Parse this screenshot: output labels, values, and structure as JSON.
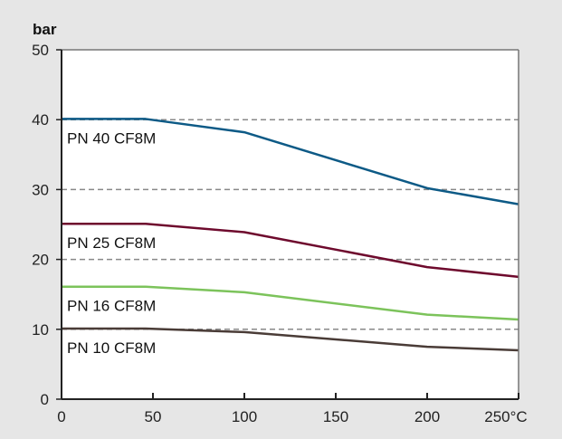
{
  "chart_data": {
    "type": "line",
    "ylabel": "bar",
    "xlim": [
      0,
      250
    ],
    "ylim": [
      0,
      50
    ],
    "x_ticks": [
      "0",
      "50",
      "100",
      "150",
      "200",
      "250°C"
    ],
    "y_ticks": [
      "0",
      "10",
      "20",
      "30",
      "40",
      "50"
    ],
    "grid": "dashed horizontal at 10, 20, 30, 40",
    "series": [
      {
        "name": "PN 40 CF8M",
        "color": "#0d5a86",
        "x": [
          0,
          46,
          100,
          200,
          250
        ],
        "y": [
          40.1,
          40.1,
          38.2,
          30.2,
          27.9
        ]
      },
      {
        "name": "PN 25 CF8M",
        "color": "#6e0a2d",
        "x": [
          0,
          46,
          100,
          200,
          250
        ],
        "y": [
          25.1,
          25.1,
          23.9,
          18.9,
          17.5
        ]
      },
      {
        "name": "PN 16 CF8M",
        "color": "#7cc35b",
        "x": [
          0,
          46,
          100,
          200,
          250
        ],
        "y": [
          16.1,
          16.1,
          15.3,
          12.1,
          11.4
        ]
      },
      {
        "name": "PN 10 CF8M",
        "color": "#4a3c37",
        "x": [
          0,
          46,
          100,
          200,
          250
        ],
        "y": [
          10.1,
          10.1,
          9.6,
          7.5,
          7.0
        ]
      }
    ]
  }
}
